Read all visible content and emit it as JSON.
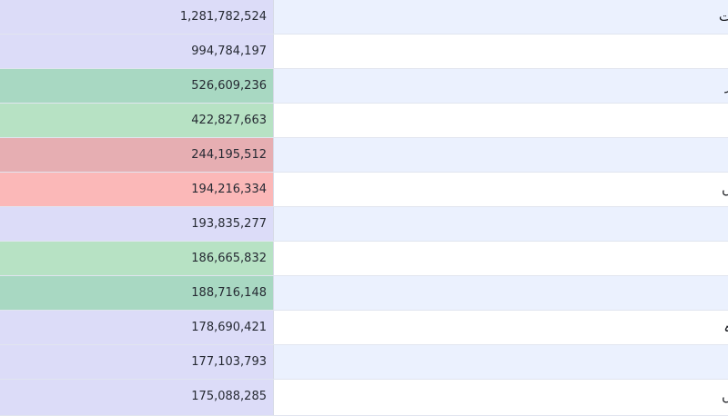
{
  "rows": [
    {
      "value": "1,281,782,524",
      "name": "ت",
      "cell_color": "#dcdcf8",
      "row_bg": "#ebf1fe"
    },
    {
      "value": "994,784,197",
      "name": "",
      "cell_color": "#dcdcf8",
      "row_bg": "#ffffff"
    },
    {
      "value": "526,609,236",
      "name": "ر",
      "cell_color": "#a8d8c2",
      "row_bg": "#ebf1fe"
    },
    {
      "value": "422,827,663",
      "name": "",
      "cell_color": "#b7e2c4",
      "row_bg": "#ffffff"
    },
    {
      "value": "244,195,512",
      "name": "",
      "cell_color": "#e6aeb2",
      "row_bg": "#ebf1fe"
    },
    {
      "value": "194,216,334",
      "name": "ں",
      "cell_color": "#fbb8b8",
      "row_bg": "#ffffff"
    },
    {
      "value": "193,835,277",
      "name": "",
      "cell_color": "#dcdcf8",
      "row_bg": "#ebf1fe"
    },
    {
      "value": "186,665,832",
      "name": "",
      "cell_color": "#b7e2c4",
      "row_bg": "#ffffff"
    },
    {
      "value": "188,716,148",
      "name": "",
      "cell_color": "#a8d8c2",
      "row_bg": "#ebf1fe"
    },
    {
      "value": "178,690,421",
      "name": "ہ",
      "cell_color": "#dcdcf8",
      "row_bg": "#ffffff"
    },
    {
      "value": "177,103,793",
      "name": "",
      "cell_color": "#dcdcf8",
      "row_bg": "#ebf1fe"
    },
    {
      "value": "175,088,285",
      "name": "ں",
      "cell_color": "#dcdcf8",
      "row_bg": "#ffffff"
    }
  ]
}
